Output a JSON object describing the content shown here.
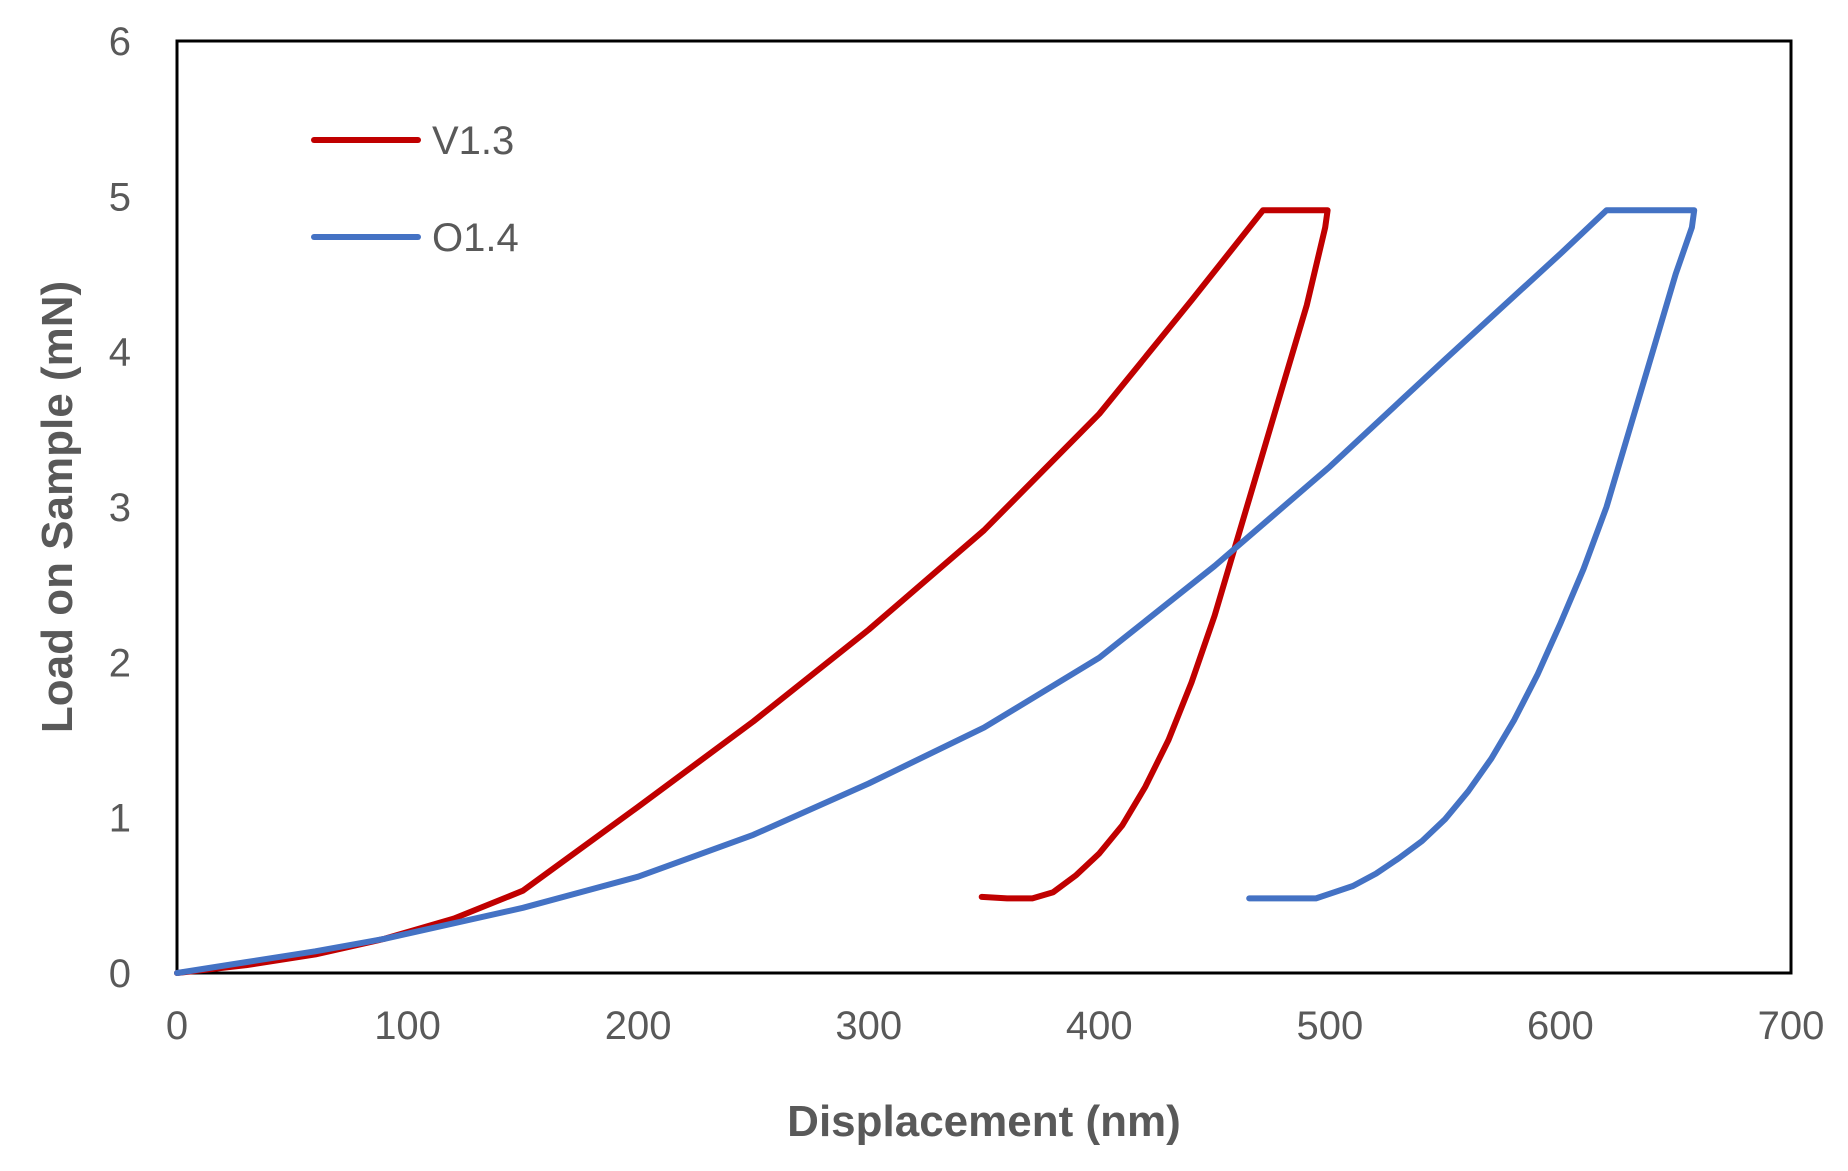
{
  "chart_data": {
    "type": "line",
    "title": "",
    "xlabel": "Displacement (nm)",
    "ylabel": "Load on Sample (mN)",
    "xlim": [
      0,
      700
    ],
    "ylim": [
      0,
      6
    ],
    "xticks": [
      "0",
      "100",
      "200",
      "300",
      "400",
      "500",
      "600",
      "700"
    ],
    "yticks": [
      "0",
      "1",
      "2",
      "3",
      "4",
      "5",
      "6"
    ],
    "grid": false,
    "legend_position": "top-left",
    "series": [
      {
        "name": "V1.3",
        "color": "#C00000",
        "x": [
          0,
          30,
          60,
          90,
          120,
          150,
          200,
          250,
          300,
          350,
          400,
          440,
          471,
          480,
          499,
          498,
          490,
          480,
          470,
          460,
          450,
          440,
          430,
          420,
          410,
          400,
          390,
          380,
          371,
          360,
          349
        ],
        "y": [
          0,
          0.05,
          0.12,
          0.22,
          0.35,
          0.53,
          1.07,
          1.62,
          2.21,
          2.85,
          3.6,
          4.33,
          4.91,
          4.91,
          4.91,
          4.8,
          4.3,
          3.8,
          3.3,
          2.8,
          2.3,
          1.87,
          1.5,
          1.2,
          0.95,
          0.77,
          0.63,
          0.52,
          0.48,
          0.48,
          0.49
        ]
      },
      {
        "name": "O1.4",
        "color": "#4472C4",
        "x": [
          0,
          30,
          60,
          90,
          120,
          150,
          200,
          250,
          300,
          350,
          400,
          450,
          500,
          550,
          600,
          620,
          640,
          658,
          657,
          650,
          640,
          630,
          620,
          610,
          600,
          590,
          580,
          570,
          560,
          550,
          540,
          530,
          520,
          510,
          494,
          480,
          465
        ],
        "y": [
          0,
          0.07,
          0.14,
          0.22,
          0.32,
          0.42,
          0.62,
          0.89,
          1.22,
          1.58,
          2.03,
          2.62,
          3.26,
          3.95,
          4.63,
          4.91,
          4.91,
          4.91,
          4.8,
          4.5,
          4.0,
          3.5,
          3.0,
          2.6,
          2.25,
          1.92,
          1.63,
          1.38,
          1.17,
          0.99,
          0.85,
          0.74,
          0.64,
          0.56,
          0.48,
          0.48,
          0.48
        ]
      }
    ]
  }
}
